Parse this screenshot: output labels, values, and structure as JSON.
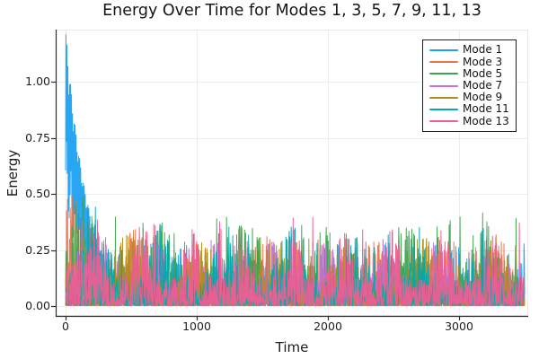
{
  "figure": {
    "title": "Energy Over Time for Modes 1, 3, 5, 7, 9, 11, 13",
    "xlabel": "Time",
    "ylabel": "Energy"
  },
  "legend": {
    "position": "top-right",
    "entries": [
      {
        "label": "Mode 1",
        "color": "#1CA0F2"
      },
      {
        "label": "Mode 3",
        "color": "#E8744E"
      },
      {
        "label": "Mode 5",
        "color": "#3EA44E"
      },
      {
        "label": "Mode 7",
        "color": "#C571D4"
      },
      {
        "label": "Mode 9",
        "color": "#AD8E19"
      },
      {
        "label": "Mode 11",
        "color": "#00A9AD"
      },
      {
        "label": "Mode 13",
        "color": "#EF5D92"
      }
    ]
  },
  "colors": {
    "background": "#ffffff",
    "grid": "#ededed",
    "outer_frame": "#e8e8e8",
    "spine": "#2e2e2e",
    "text": "#151515"
  },
  "chart_data": {
    "type": "line",
    "title": "Energy Over Time for Modes 1, 3, 5, 7, 9, 11, 13",
    "xlabel": "Time",
    "ylabel": "Energy",
    "xlim": [
      -75,
      3527
    ],
    "ylim": [
      -0.045,
      1.235
    ],
    "grid": true,
    "legend_position": "top-right",
    "t_range": [
      0,
      3500
    ],
    "sample_step": 2.5,
    "xticks": {
      "values": [
        0,
        1000,
        2000,
        3000
      ],
      "labels": [
        "0",
        "1000",
        "2000",
        "3000"
      ]
    },
    "yticks": {
      "values": [
        0,
        0.25,
        0.5,
        0.75,
        1.0
      ],
      "labels": [
        "0.00",
        "0.25",
        "0.50",
        "0.75",
        "1.00"
      ]
    },
    "description": "Seven modal energy time series; Mode 1 shows a decaying oscillatory transient from ~1.20 down to the noise floor by t~450; all modes then fluctuate as spiky noise mostly between 0 and 0.2 with occasional bursts up to ~0.4.",
    "series": [
      {
        "name": "Mode 1",
        "color": "#1CA0F2",
        "seed": 11,
        "noise": {
          "amp": 0.15,
          "spike_prob": 0.01,
          "spike_max": 0.3,
          "burst_period": 520,
          "early_boost": 0.4
        },
        "transient": {
          "peak": 1.24,
          "decay_tau": 170,
          "floor": 0.43,
          "floor_tau": 120,
          "osc_freq": 0.45,
          "osc_phase": 0.3,
          "end_t": 450
        },
        "transient_peak_envelope": [
          [
            0,
            0.45
          ],
          [
            10,
            1.2
          ],
          [
            35,
            1.1
          ],
          [
            80,
            0.95
          ],
          [
            130,
            0.75
          ],
          [
            200,
            0.48
          ],
          [
            300,
            0.25
          ],
          [
            420,
            0.18
          ]
        ],
        "notable_spikes": [
          [
            600,
            0.27
          ]
        ]
      },
      {
        "name": "Mode 3",
        "color": "#E8744E",
        "seed": 23,
        "noise": {
          "amp": 0.17,
          "spike_prob": 0.01,
          "spike_max": 0.3,
          "burst_period": 460,
          "early_boost": 0.9
        },
        "notable_spikes": [
          [
            55,
            0.28
          ],
          [
            2980,
            0.24
          ]
        ]
      },
      {
        "name": "Mode 5",
        "color": "#3EA44E",
        "seed": 35,
        "noise": {
          "amp": 0.2,
          "spike_prob": 0.012,
          "spike_max": 0.42,
          "burst_period": 610,
          "early_boost": 0.6
        },
        "notable_spikes": [
          [
            200,
            0.4
          ],
          [
            590,
            0.37
          ],
          [
            1745,
            0.34
          ],
          [
            1800,
            0.36
          ],
          [
            2150,
            0.3
          ]
        ]
      },
      {
        "name": "Mode 7",
        "color": "#C571D4",
        "seed": 47,
        "noise": {
          "amp": 0.16,
          "spike_prob": 0.01,
          "spike_max": 0.3,
          "burst_period": 430,
          "early_boost": 0.6
        },
        "notable_spikes": [
          [
            1390,
            0.26
          ],
          [
            2210,
            0.26
          ]
        ]
      },
      {
        "name": "Mode 9",
        "color": "#AD8E19",
        "seed": 59,
        "noise": {
          "amp": 0.17,
          "spike_prob": 0.011,
          "spike_max": 0.32,
          "burst_period": 560,
          "early_boost": 0.6
        },
        "notable_spikes": [
          [
            1855,
            0.3
          ],
          [
            3430,
            0.27
          ]
        ]
      },
      {
        "name": "Mode 11",
        "color": "#00A9AD",
        "seed": 71,
        "noise": {
          "amp": 0.19,
          "spike_prob": 0.012,
          "spike_max": 0.36,
          "burst_period": 490,
          "early_boost": 0.6
        },
        "notable_spikes": [
          [
            1918,
            0.28
          ],
          [
            2490,
            0.33
          ]
        ]
      },
      {
        "name": "Mode 13",
        "color": "#EF5D92",
        "seed": 83,
        "noise": {
          "amp": 0.19,
          "spike_prob": 0.012,
          "spike_max": 0.4,
          "burst_period": 380,
          "early_boost": 0.6
        },
        "notable_spikes": [
          [
            1534,
            0.31
          ],
          [
            2160,
            0.3
          ],
          [
            3460,
            0.37
          ]
        ]
      }
    ]
  }
}
